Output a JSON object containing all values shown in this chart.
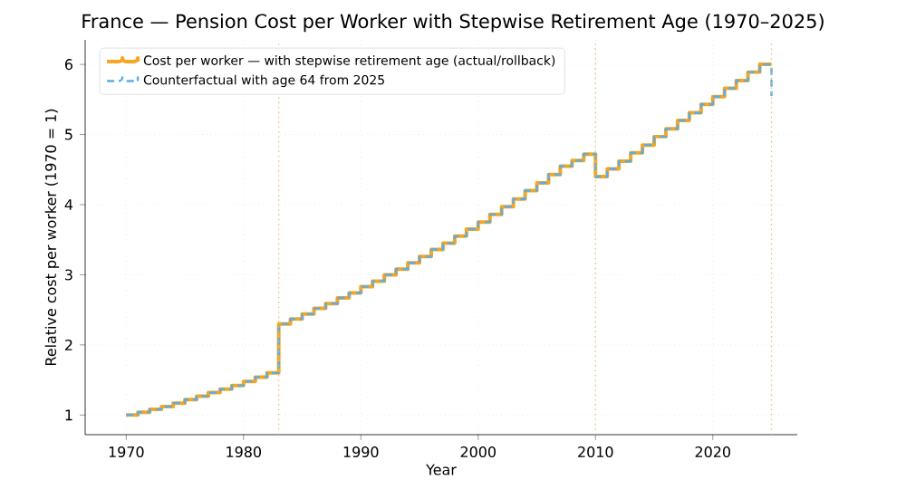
{
  "chart_data": {
    "type": "step",
    "title": "France — Pension Cost per Worker with Stepwise Retirement Age (1970–2025)",
    "xlabel": "Year",
    "ylabel": "Relative cost per worker (1970 = 1)",
    "x": [
      1970,
      1971,
      1972,
      1973,
      1974,
      1975,
      1976,
      1977,
      1978,
      1979,
      1980,
      1981,
      1982,
      1983,
      1984,
      1985,
      1986,
      1987,
      1988,
      1989,
      1990,
      1991,
      1992,
      1993,
      1994,
      1995,
      1996,
      1997,
      1998,
      1999,
      2000,
      2001,
      2002,
      2003,
      2004,
      2005,
      2006,
      2007,
      2008,
      2009,
      2010,
      2011,
      2012,
      2013,
      2014,
      2015,
      2016,
      2017,
      2018,
      2019,
      2020,
      2021,
      2022,
      2023,
      2024,
      2025
    ],
    "series": [
      {
        "name": "Cost per worker — with stepwise retirement age (actual/rollback)",
        "color": "#f5a623",
        "line_style": "solid",
        "values": [
          1.0,
          1.04,
          1.08,
          1.12,
          1.17,
          1.22,
          1.27,
          1.32,
          1.37,
          1.42,
          1.48,
          1.54,
          1.6,
          2.3,
          2.37,
          2.44,
          2.52,
          2.59,
          2.67,
          2.74,
          2.83,
          2.91,
          3.0,
          3.08,
          3.17,
          3.26,
          3.36,
          3.45,
          3.55,
          3.65,
          3.75,
          3.86,
          3.97,
          4.08,
          4.2,
          4.31,
          4.43,
          4.55,
          4.63,
          4.72,
          4.4,
          4.51,
          4.62,
          4.74,
          4.85,
          4.97,
          5.08,
          5.2,
          5.31,
          5.43,
          5.54,
          5.66,
          5.77,
          5.89,
          6.0,
          6.0
        ]
      },
      {
        "name": "Counterfactual with age 64 from 2025",
        "color": "#5dade2",
        "line_style": "dashed",
        "values": [
          1.0,
          1.04,
          1.08,
          1.12,
          1.17,
          1.22,
          1.27,
          1.32,
          1.37,
          1.42,
          1.48,
          1.54,
          1.6,
          2.3,
          2.37,
          2.44,
          2.52,
          2.59,
          2.67,
          2.74,
          2.83,
          2.91,
          3.0,
          3.08,
          3.17,
          3.26,
          3.36,
          3.45,
          3.55,
          3.65,
          3.75,
          3.86,
          3.97,
          4.08,
          4.2,
          4.31,
          4.43,
          4.55,
          4.63,
          4.72,
          4.4,
          4.51,
          4.62,
          4.74,
          4.85,
          4.97,
          5.08,
          5.2,
          5.31,
          5.43,
          5.54,
          5.66,
          5.77,
          5.89,
          6.0,
          5.55
        ]
      }
    ],
    "ref_lines": [
      {
        "axis": "x",
        "value": 1983,
        "color": "#e6c35c",
        "line_style": "dotted"
      },
      {
        "axis": "x",
        "value": 2010,
        "color": "#e6c35c",
        "line_style": "dotted"
      },
      {
        "axis": "x",
        "value": 2025,
        "color": "#e6c35c",
        "line_style": "dotted"
      }
    ],
    "xlim": [
      1966.5,
      2027.2
    ],
    "ylim": [
      0.72,
      6.35
    ],
    "xticks": [
      1970,
      1980,
      1990,
      2000,
      2010,
      2020
    ],
    "yticks": [
      1,
      2,
      3,
      4,
      5,
      6
    ],
    "grid": true,
    "legend": "top left"
  }
}
